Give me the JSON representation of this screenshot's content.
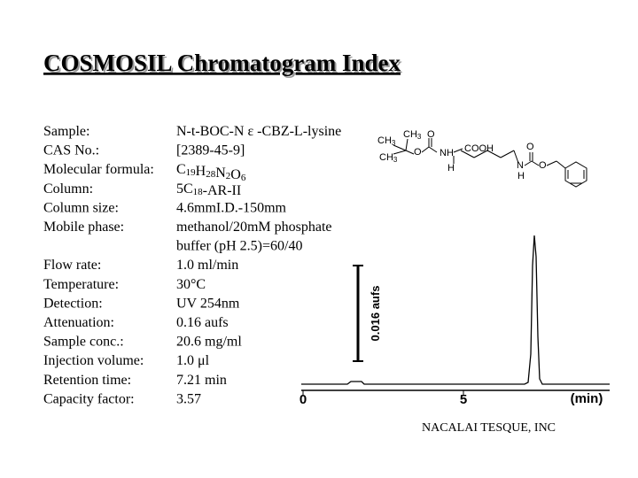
{
  "header": {
    "title": "COSMOSIL Chromatogram Index"
  },
  "fields": [
    {
      "label": "Sample:",
      "value": [
        "N-t-BOC-N ε -CBZ-L-lysine"
      ]
    },
    {
      "label": "CAS No.:",
      "value": [
        "[2389-45-9]"
      ]
    },
    {
      "label": "Molecular formula:",
      "value": [
        "C19H28N2O6"
      ]
    },
    {
      "label": "Column:",
      "value": [
        "5C18-AR-II"
      ]
    },
    {
      "label": "Column size:",
      "value": [
        "4.6mmI.D.-150mm"
      ]
    },
    {
      "label": "Mobile phase:",
      "value": [
        "methanol/20mM phosphate",
        "buffer (pH 2.5)=60/40"
      ]
    },
    {
      "label": "Flow rate:",
      "value": [
        "1.0 ml/min"
      ]
    },
    {
      "label": "Temperature:",
      "value": [
        "30°C"
      ]
    },
    {
      "label": "Detection:",
      "value": [
        "UV 254nm"
      ]
    },
    {
      "label": "Attenuation:",
      "value": [
        "0.16 aufs"
      ]
    },
    {
      "label": "Sample conc.:",
      "value": [
        "20.6 mg/ml"
      ]
    },
    {
      "label": "Injection volume:",
      "value": [
        "1.0 μl"
      ]
    },
    {
      "label": "Retention time:",
      "value": [
        "7.21 min"
      ]
    },
    {
      "label": "Capacity factor:",
      "value": [
        "3.57"
      ]
    }
  ],
  "structure": {
    "labels": [
      "CH3",
      "CH3",
      "O",
      "CH3",
      "O",
      "NH",
      "COOH",
      "H",
      "O",
      "N",
      "H",
      "O"
    ]
  },
  "chromatogram": {
    "xticks": [
      0,
      5
    ],
    "x_label": "(min)",
    "scale_bar": "0.016 aufs"
  },
  "footer": {
    "company": "NACALAI TESQUE, INC"
  }
}
